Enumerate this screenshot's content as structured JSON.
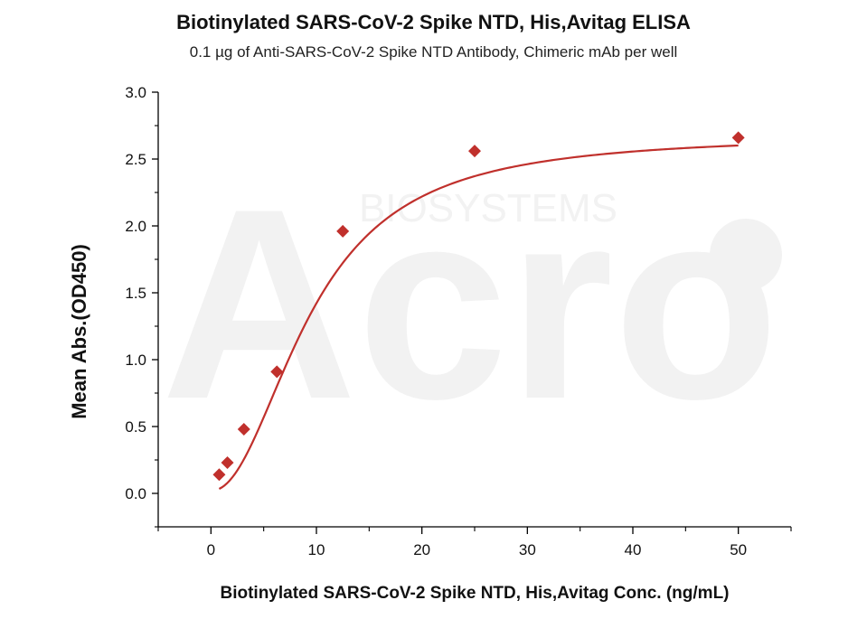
{
  "chart_data": {
    "type": "scatter",
    "title": "Biotinylated SARS-CoV-2 Spike NTD, His,Avitag ELISA",
    "subtitle": "0.1 µg of Anti-SARS-CoV-2 Spike NTD Antibody, Chimeric mAb per well",
    "xlabel": "Biotinylated SARS-CoV-2 Spike NTD, His,Avitag Conc. (ng/mL)",
    "ylabel": "Mean Abs.(OD450)",
    "xlim": [
      -5,
      55
    ],
    "ylim": [
      -0.25,
      3.0
    ],
    "xticks": [
      0,
      10,
      20,
      30,
      40,
      50
    ],
    "yticks": [
      0.0,
      0.5,
      1.0,
      1.5,
      2.0,
      2.5,
      3.0
    ],
    "xtick_labels": [
      "0",
      "10",
      "20",
      "30",
      "40",
      "50"
    ],
    "ytick_labels": [
      "0.0",
      "0.5",
      "1.0",
      "1.5",
      "2.0",
      "2.5",
      "3.0"
    ],
    "series": [
      {
        "points": [
          {
            "x": 0.78,
            "y": 0.14
          },
          {
            "x": 1.56,
            "y": 0.23
          },
          {
            "x": 3.125,
            "y": 0.48
          },
          {
            "x": 6.25,
            "y": 0.91
          },
          {
            "x": 12.5,
            "y": 1.96
          },
          {
            "x": 25,
            "y": 2.56
          },
          {
            "x": 50,
            "y": 2.66
          }
        ],
        "marker": "diamond",
        "color": "#c0302c"
      }
    ],
    "fit_curve": {
      "type": "4PL",
      "bottom": 0.02,
      "top": 2.68,
      "ec50": 9.5,
      "hill": 2.1,
      "x_range": [
        0.78,
        50
      ],
      "color": "#c0302c"
    },
    "grid": false,
    "legend": "none",
    "watermark": {
      "brand": "Acro",
      "tagline": "BIOSYSTEMS",
      "color": "#f2f2f2"
    }
  }
}
